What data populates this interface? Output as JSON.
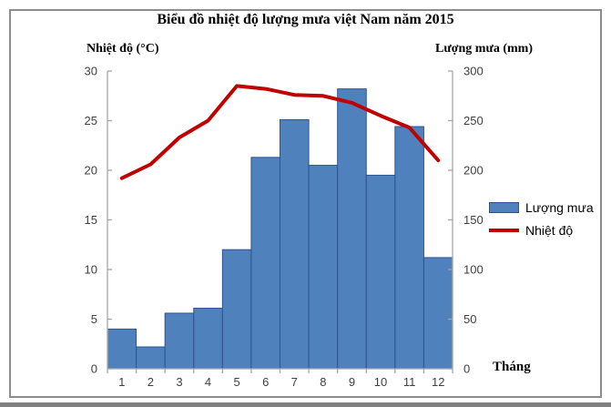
{
  "title": "Biểu đồ nhiệt độ lượng mưa việt Nam năm 2015",
  "axes": {
    "left_title": "Nhiệt độ (°C)",
    "right_title": "Lượng mưa (mm)",
    "x_title": "Tháng"
  },
  "legend": {
    "rainfall_label": "Lượng mưa",
    "temperature_label": "Nhiệt độ"
  },
  "colors": {
    "bar_fill": "#4f81bd",
    "bar_stroke": "#2e5395",
    "line": "#c00000",
    "axis": "#a6a6a6",
    "tick_text": "#3f3f3f"
  },
  "chart_data": {
    "type": "bar+line combo (column rainfall, line temperature)",
    "title": "Biểu đồ nhiệt độ lượng mưa việt Nam năm 2015",
    "categories": [
      "1",
      "2",
      "3",
      "4",
      "5",
      "6",
      "7",
      "8",
      "9",
      "10",
      "11",
      "12"
    ],
    "x_label": "Tháng",
    "series": [
      {
        "name": "Lượng mưa",
        "type": "bar",
        "axis": "right",
        "unit": "mm",
        "values": [
          40,
          22,
          56,
          61,
          120,
          213,
          251,
          205,
          282,
          195,
          244,
          112
        ]
      },
      {
        "name": "Nhiệt độ",
        "type": "line",
        "axis": "left",
        "unit": "°C",
        "values": [
          19.2,
          20.6,
          23.3,
          25.0,
          28.5,
          28.2,
          27.6,
          27.5,
          26.8,
          25.5,
          24.3,
          21.0
        ]
      }
    ],
    "left_axis": {
      "label": "Nhiệt độ (°C)",
      "min": 0,
      "max": 30,
      "step": 5
    },
    "right_axis": {
      "label": "Lượng mưa (mm)",
      "min": 0,
      "max": 300,
      "step": 50
    },
    "grid": false,
    "legend_position": "right-middle"
  }
}
